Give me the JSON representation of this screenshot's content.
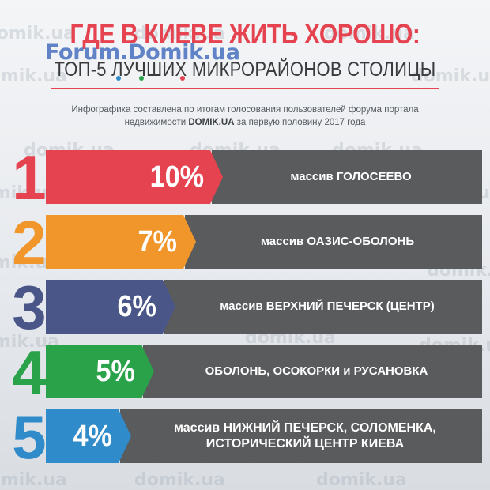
{
  "watermark": "domik.ua",
  "logo": "Forum.Domik.ua",
  "title": "ГДЕ В КИЕВЕ ЖИТЬ ХОРОШО:",
  "subtitle": "ТОП-5 ЛУЧШИХ МИКРОРАЙОНОВ СТОЛИЦЫ",
  "description": {
    "line1": "Инфографика составлена по итогам голосования пользователей форума портала",
    "line2_pre": "недвижимости",
    "line2_brand": "DOMIK.UA",
    "line2_post": "за первую половину 2017 года"
  },
  "colors": {
    "title": "#e54350",
    "rank1": "#e54350",
    "rank2": "#f0962a",
    "rank3": "#4a5688",
    "rank4": "#2aa24a",
    "rank5": "#2f8bc9",
    "bar": "#5a5b5d"
  },
  "ranking": [
    {
      "rank": "1",
      "percent": "10%",
      "share": 10,
      "name_line1": "массив ГОЛОСЕЕВО",
      "name_line2": ""
    },
    {
      "rank": "2",
      "percent": "7%",
      "share": 7,
      "name_line1": "массив ОАЗИС-ОБОЛОНЬ",
      "name_line2": ""
    },
    {
      "rank": "3",
      "percent": "6%",
      "share": 6,
      "name_line1": "массив ВЕРХНИЙ ПЕЧЕРСК (ЦЕНТР)",
      "name_line2": ""
    },
    {
      "rank": "4",
      "percent": "5%",
      "share": 5,
      "name_line1": "ОБОЛОНЬ, ОСОКОРКИ и РУСАНОВКА",
      "name_line2": ""
    },
    {
      "rank": "5",
      "percent": "4%",
      "share": 4,
      "name_line1": "массив НИЖНИЙ ПЕЧЕРСК, СОЛОМЕНКА,",
      "name_line2": "ИСТОРИЧЕСКИЙ ЦЕНТР КИЕВА"
    }
  ]
}
